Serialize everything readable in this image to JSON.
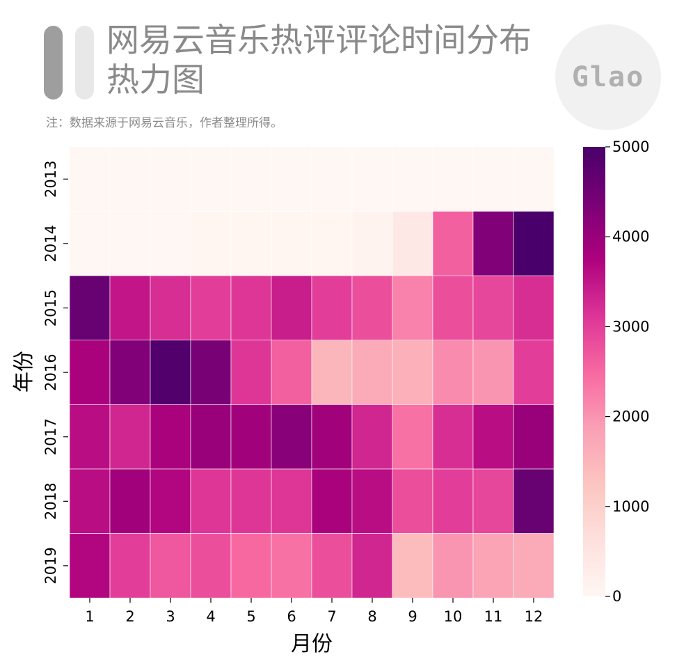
{
  "header": {
    "title": "网易云音乐热评评论时间分布热力图",
    "note": "注：数据来源于网易云音乐，作者整理所得。",
    "logo_text": "Glao"
  },
  "chart_data": {
    "type": "heatmap",
    "xlabel": "月份",
    "ylabel": "年份",
    "x_categories": [
      "1",
      "2",
      "3",
      "4",
      "5",
      "6",
      "7",
      "8",
      "9",
      "10",
      "11",
      "12"
    ],
    "y_categories": [
      "2013",
      "2014",
      "2015",
      "2016",
      "2017",
      "2018",
      "2019"
    ],
    "values": [
      [
        0,
        0,
        0,
        0,
        0,
        0,
        0,
        0,
        0,
        0,
        0,
        0
      ],
      [
        10,
        10,
        10,
        20,
        20,
        30,
        50,
        100,
        400,
        2600,
        4300,
        5000
      ],
      [
        4600,
        3500,
        3200,
        3000,
        3100,
        3400,
        3000,
        2800,
        2200,
        2800,
        2900,
        3200
      ],
      [
        3800,
        4300,
        4900,
        4400,
        3100,
        2600,
        1500,
        1700,
        1600,
        2100,
        2000,
        3000
      ],
      [
        3600,
        3300,
        3800,
        4000,
        3900,
        4200,
        3900,
        3300,
        2400,
        3200,
        3600,
        4000
      ],
      [
        3600,
        3900,
        3700,
        3100,
        3100,
        3100,
        3800,
        3600,
        2800,
        3000,
        2900,
        4600
      ],
      [
        3700,
        3000,
        2700,
        2800,
        2500,
        2400,
        2800,
        3300,
        1400,
        2000,
        1800,
        1700
      ]
    ],
    "vmin": 0,
    "vmax": 5000,
    "colorbar_ticks": [
      "0",
      "1000",
      "2000",
      "3000",
      "4000",
      "5000"
    ],
    "colormap": [
      "#fff7f3",
      "#fde0dd",
      "#fcc5c0",
      "#fa9fb5",
      "#f768a1",
      "#dd3497",
      "#ae017e",
      "#7a0177",
      "#49006a"
    ],
    "grid": true
  }
}
